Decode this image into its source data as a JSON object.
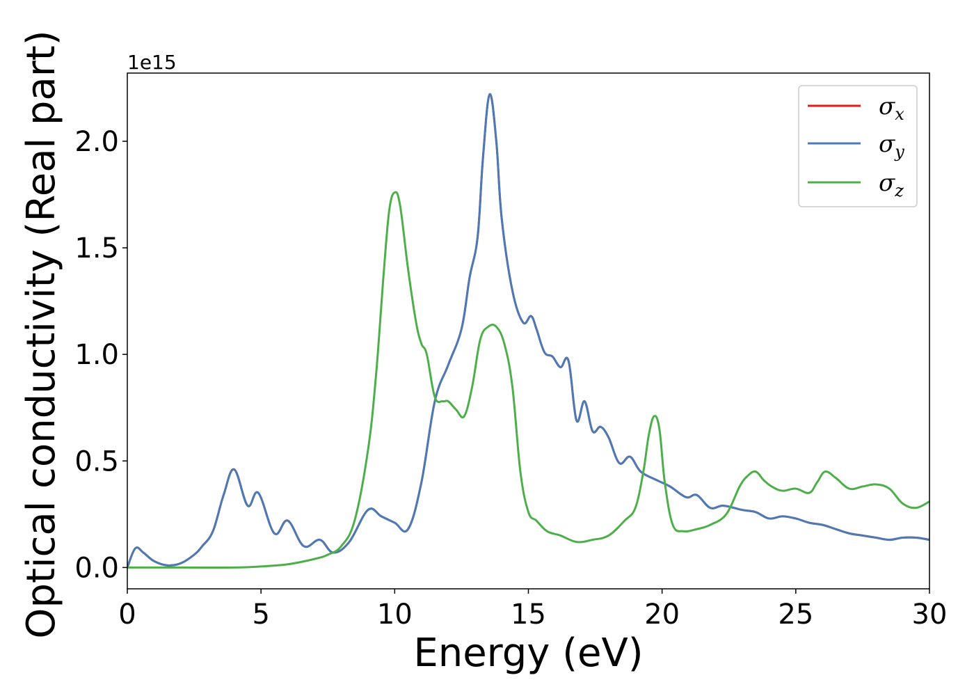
{
  "chart_data": {
    "type": "line",
    "xlabel": "Energy (eV)",
    "ylabel": "Optical conductivity (Real part)",
    "y_offset_text": "1e15",
    "xlim": [
      0,
      30
    ],
    "ylim": [
      -0.1,
      2.32
    ],
    "x_ticks": [
      0,
      5,
      10,
      15,
      20,
      25,
      30
    ],
    "x_tick_labels": [
      "0",
      "5",
      "10",
      "15",
      "20",
      "25",
      "30"
    ],
    "y_ticks": [
      0.0,
      0.5,
      1.0,
      1.5,
      2.0
    ],
    "y_tick_labels": [
      "0.0",
      "0.5",
      "1.0",
      "1.5",
      "2.0"
    ],
    "grid": false,
    "legend_position": "top-right",
    "series": [
      {
        "name": "σx",
        "symbol": "σ",
        "subscript": "x",
        "color": "#e41a1c",
        "x": [
          0,
          0.3,
          0.6,
          1.0,
          1.5,
          2.0,
          2.5,
          2.8,
          3.2,
          3.6,
          4.0,
          4.5,
          4.9,
          5.5,
          6.0,
          6.6,
          7.2,
          7.7,
          8.3,
          9.0,
          9.5,
          10.0,
          10.5,
          11.0,
          11.5,
          12.0,
          12.5,
          12.8,
          13.1,
          13.3,
          13.55,
          13.8,
          14.0,
          14.4,
          14.8,
          15.1,
          15.3,
          15.6,
          15.9,
          16.2,
          16.5,
          16.8,
          17.1,
          17.4,
          17.7,
          18.0,
          18.4,
          18.8,
          19.2,
          19.8,
          20.3,
          20.9,
          21.3,
          21.8,
          22.3,
          23.0,
          23.5,
          24.0,
          24.5,
          25.0,
          25.5,
          26.0,
          26.5,
          27.0,
          27.5,
          28.0,
          28.5,
          29.0,
          29.5,
          30.0
        ],
        "y": [
          0.0,
          0.09,
          0.07,
          0.03,
          0.01,
          0.02,
          0.06,
          0.1,
          0.17,
          0.34,
          0.46,
          0.29,
          0.35,
          0.16,
          0.22,
          0.1,
          0.13,
          0.07,
          0.12,
          0.27,
          0.24,
          0.21,
          0.18,
          0.4,
          0.78,
          0.95,
          1.12,
          1.36,
          1.55,
          1.92,
          2.22,
          2.0,
          1.64,
          1.3,
          1.15,
          1.18,
          1.12,
          1.01,
          0.99,
          0.94,
          0.97,
          0.69,
          0.78,
          0.64,
          0.66,
          0.61,
          0.49,
          0.52,
          0.45,
          0.41,
          0.38,
          0.33,
          0.34,
          0.28,
          0.29,
          0.27,
          0.26,
          0.23,
          0.24,
          0.23,
          0.21,
          0.2,
          0.18,
          0.16,
          0.15,
          0.14,
          0.13,
          0.14,
          0.14,
          0.13
        ]
      },
      {
        "name": "σy",
        "symbol": "σ",
        "subscript": "y",
        "color": "#4a7bb7",
        "x": [
          0,
          0.3,
          0.6,
          1.0,
          1.5,
          2.0,
          2.5,
          2.8,
          3.2,
          3.6,
          4.0,
          4.5,
          4.9,
          5.5,
          6.0,
          6.6,
          7.2,
          7.7,
          8.3,
          9.0,
          9.5,
          10.0,
          10.5,
          11.0,
          11.5,
          12.0,
          12.5,
          12.8,
          13.1,
          13.3,
          13.55,
          13.8,
          14.0,
          14.4,
          14.8,
          15.1,
          15.3,
          15.6,
          15.9,
          16.2,
          16.5,
          16.8,
          17.1,
          17.4,
          17.7,
          18.0,
          18.4,
          18.8,
          19.2,
          19.8,
          20.3,
          20.9,
          21.3,
          21.8,
          22.3,
          23.0,
          23.5,
          24.0,
          24.5,
          25.0,
          25.5,
          26.0,
          26.5,
          27.0,
          27.5,
          28.0,
          28.5,
          29.0,
          29.5,
          30.0
        ],
        "y": [
          0.0,
          0.09,
          0.07,
          0.03,
          0.01,
          0.02,
          0.06,
          0.1,
          0.17,
          0.34,
          0.46,
          0.29,
          0.35,
          0.16,
          0.22,
          0.1,
          0.13,
          0.07,
          0.12,
          0.27,
          0.24,
          0.21,
          0.18,
          0.4,
          0.78,
          0.95,
          1.12,
          1.36,
          1.55,
          1.92,
          2.22,
          2.0,
          1.64,
          1.3,
          1.15,
          1.18,
          1.12,
          1.01,
          0.99,
          0.94,
          0.97,
          0.69,
          0.78,
          0.64,
          0.66,
          0.61,
          0.49,
          0.52,
          0.45,
          0.41,
          0.38,
          0.33,
          0.34,
          0.28,
          0.29,
          0.27,
          0.26,
          0.23,
          0.24,
          0.23,
          0.21,
          0.2,
          0.18,
          0.16,
          0.15,
          0.14,
          0.13,
          0.14,
          0.14,
          0.13
        ]
      },
      {
        "name": "σz",
        "symbol": "σ",
        "subscript": "z",
        "color": "#4daf4a",
        "x": [
          0,
          2,
          4,
          5,
          6,
          7,
          7.5,
          8.0,
          8.5,
          9.0,
          9.3,
          9.6,
          9.8,
          10.0,
          10.2,
          10.5,
          10.8,
          11.0,
          11.2,
          11.5,
          11.8,
          12.0,
          12.3,
          12.6,
          12.9,
          13.2,
          13.5,
          13.8,
          14.1,
          14.4,
          14.7,
          15.0,
          15.3,
          15.7,
          16.2,
          16.8,
          17.4,
          18.0,
          18.6,
          19.0,
          19.3,
          19.5,
          19.7,
          19.9,
          20.1,
          20.4,
          20.8,
          21.3,
          21.8,
          22.4,
          22.9,
          23.2,
          23.5,
          23.8,
          24.1,
          24.5,
          25.0,
          25.5,
          25.8,
          26.1,
          26.5,
          27.0,
          27.5,
          28.0,
          28.5,
          29.0,
          29.5,
          30.0
        ],
        "y": [
          0.0,
          0.0,
          0.0,
          0.005,
          0.015,
          0.04,
          0.06,
          0.1,
          0.22,
          0.55,
          0.9,
          1.4,
          1.68,
          1.76,
          1.7,
          1.4,
          1.15,
          1.05,
          1.0,
          0.8,
          0.78,
          0.78,
          0.74,
          0.71,
          0.85,
          1.07,
          1.13,
          1.13,
          1.05,
          0.85,
          0.45,
          0.26,
          0.22,
          0.17,
          0.15,
          0.12,
          0.13,
          0.15,
          0.22,
          0.28,
          0.45,
          0.62,
          0.71,
          0.65,
          0.4,
          0.2,
          0.17,
          0.18,
          0.2,
          0.25,
          0.38,
          0.43,
          0.45,
          0.41,
          0.38,
          0.36,
          0.37,
          0.35,
          0.4,
          0.45,
          0.42,
          0.37,
          0.38,
          0.39,
          0.37,
          0.3,
          0.28,
          0.31
        ]
      }
    ]
  }
}
